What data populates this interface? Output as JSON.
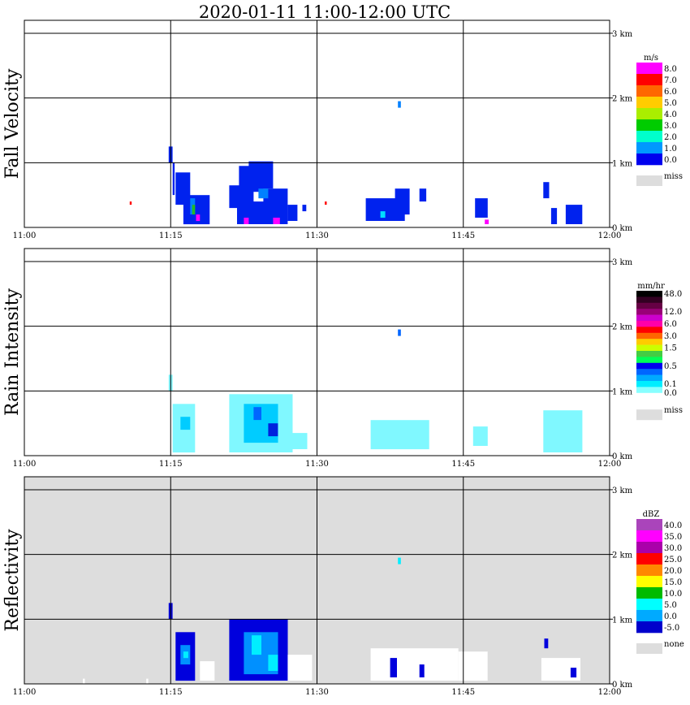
{
  "title": "2020-01-11   11:00-12:00 UTC",
  "x_ticks": [
    "11:00",
    "11:15",
    "11:30",
    "11:45",
    "12:00"
  ],
  "height_ticks": [
    "0 km",
    "1 km",
    "2 km",
    "3 km"
  ],
  "colors": {
    "grid": "#000000",
    "missing_bg": "#dddddd",
    "fv_blue": "#0022ee",
    "fv_mid": "#0080ff",
    "fv_cyan": "#00ddff",
    "fv_green": "#22bb22",
    "fv_magenta": "#ff00ff",
    "fv_red": "#ff0000",
    "ri_light": "#80f8ff",
    "ri_cyan": "#00ccff",
    "ri_blue": "#0066ff",
    "ri_dark": "#0022dd",
    "rf_blue": "#0000dd",
    "rf_mid": "#0090ff",
    "rf_cyan": "#00eeff",
    "rf_white": "#ffffff"
  },
  "chart_data": [
    {
      "type": "heatmap",
      "ylabel": "Fall Velocity",
      "x_range": [
        "11:00",
        "12:00"
      ],
      "y_range_km": [
        0,
        3.2
      ],
      "legend": {
        "unit": "m/s",
        "placement": "right",
        "labels": [
          "8.0",
          "7.0",
          "6.0",
          "5.0",
          "4.0",
          "3.0",
          "2.0",
          "1.0",
          "0.0"
        ],
        "colors": [
          "#ff00ff",
          "#ff0000",
          "#ff6600",
          "#ffcc00",
          "#aaee00",
          "#00cc00",
          "#00ffcc",
          "#0099ff",
          "#0000ee"
        ],
        "missing_label": "miss",
        "missing_color": "#dddddd"
      },
      "echoes": [
        {
          "t0": 14.8,
          "t1": 15.2,
          "h0": 1.0,
          "h1": 1.25,
          "color": "fv_blue"
        },
        {
          "t0": 15.2,
          "t1": 15.4,
          "h0": 0.5,
          "h1": 1.0,
          "color": "fv_blue"
        },
        {
          "t0": 15.5,
          "t1": 17.0,
          "h0": 0.35,
          "h1": 0.85,
          "color": "fv_blue"
        },
        {
          "t0": 16.3,
          "t1": 19.0,
          "h0": 0.05,
          "h1": 0.5,
          "color": "fv_blue"
        },
        {
          "t0": 17.0,
          "t1": 17.5,
          "h0": 0.2,
          "h1": 0.45,
          "color": "fv_mid"
        },
        {
          "t0": 17.2,
          "t1": 17.5,
          "h0": 0.2,
          "h1": 0.35,
          "color": "fv_green"
        },
        {
          "t0": 17.6,
          "t1": 18.0,
          "h0": 0.1,
          "h1": 0.2,
          "color": "fv_magenta"
        },
        {
          "t0": 21.0,
          "t1": 23.5,
          "h0": 0.3,
          "h1": 0.65,
          "color": "fv_blue"
        },
        {
          "t0": 22.0,
          "t1": 24.5,
          "h0": 0.55,
          "h1": 0.95,
          "color": "fv_blue"
        },
        {
          "t0": 23.0,
          "t1": 25.5,
          "h0": 0.6,
          "h1": 1.02,
          "color": "fv_blue"
        },
        {
          "t0": 21.8,
          "t1": 25.0,
          "h0": 0.05,
          "h1": 0.4,
          "color": "fv_blue"
        },
        {
          "t0": 24.5,
          "t1": 27.0,
          "h0": 0.05,
          "h1": 0.6,
          "color": "fv_blue"
        },
        {
          "t0": 24.0,
          "t1": 25.0,
          "h0": 0.45,
          "h1": 0.6,
          "color": "fv_mid"
        },
        {
          "t0": 22.5,
          "t1": 23.0,
          "h0": 0.05,
          "h1": 0.15,
          "color": "fv_magenta"
        },
        {
          "t0": 25.5,
          "t1": 26.2,
          "h0": 0.05,
          "h1": 0.15,
          "color": "fv_magenta"
        },
        {
          "t0": 27.0,
          "t1": 28.0,
          "h0": 0.1,
          "h1": 0.35,
          "color": "fv_blue"
        },
        {
          "t0": 28.5,
          "t1": 28.9,
          "h0": 0.25,
          "h1": 0.35,
          "color": "fv_blue"
        },
        {
          "t0": 35.0,
          "t1": 39.0,
          "h0": 0.1,
          "h1": 0.45,
          "color": "fv_blue"
        },
        {
          "t0": 36.5,
          "t1": 37.0,
          "h0": 0.15,
          "h1": 0.25,
          "color": "fv_cyan"
        },
        {
          "t0": 38.0,
          "t1": 39.5,
          "h0": 0.2,
          "h1": 0.6,
          "color": "fv_blue"
        },
        {
          "t0": 40.5,
          "t1": 41.2,
          "h0": 0.4,
          "h1": 0.6,
          "color": "fv_blue"
        },
        {
          "t0": 38.3,
          "t1": 38.6,
          "h0": 1.85,
          "h1": 1.95,
          "color": "fv_mid"
        },
        {
          "t0": 46.2,
          "t1": 47.5,
          "h0": 0.15,
          "h1": 0.45,
          "color": "fv_blue"
        },
        {
          "t0": 47.2,
          "t1": 47.6,
          "h0": 0.05,
          "h1": 0.12,
          "color": "fv_magenta"
        },
        {
          "t0": 53.2,
          "t1": 53.8,
          "h0": 0.45,
          "h1": 0.7,
          "color": "fv_blue"
        },
        {
          "t0": 54.0,
          "t1": 54.6,
          "h0": 0.05,
          "h1": 0.3,
          "color": "fv_blue"
        },
        {
          "t0": 55.5,
          "t1": 57.2,
          "h0": 0.05,
          "h1": 0.35,
          "color": "fv_blue"
        },
        {
          "t0": 10.8,
          "t1": 11.0,
          "h0": 0.35,
          "h1": 0.4,
          "color": "fv_red"
        },
        {
          "t0": 30.8,
          "t1": 31.0,
          "h0": 0.35,
          "h1": 0.4,
          "color": "fv_red"
        }
      ]
    },
    {
      "type": "heatmap",
      "ylabel": "Rain Intensity",
      "x_range": [
        "11:00",
        "12:00"
      ],
      "y_range_km": [
        0,
        3.2
      ],
      "legend": {
        "unit": "mm/hr",
        "placement": "right",
        "labels": [
          "48.0",
          "12.0",
          "6.0",
          "3.0",
          "1.5",
          "0.5",
          "0.1",
          "0.0"
        ],
        "colors": [
          "#000000",
          "#330022",
          "#660044",
          "#990077",
          "#cc00cc",
          "#ff00aa",
          "#ff0000",
          "#ff6600",
          "#ffcc00",
          "#ccff00",
          "#44cc44",
          "#00ff55",
          "#0000ee",
          "#0066ff",
          "#00aaff",
          "#00eeff",
          "#88ffff",
          "#ffffff"
        ],
        "missing_label": "miss",
        "missing_color": "#dddddd"
      },
      "echoes": [
        {
          "t0": 14.8,
          "t1": 15.2,
          "h0": 1.0,
          "h1": 1.25,
          "color": "ri_light"
        },
        {
          "t0": 15.2,
          "t1": 17.5,
          "h0": 0.05,
          "h1": 0.8,
          "color": "ri_light"
        },
        {
          "t0": 16.0,
          "t1": 17.0,
          "h0": 0.4,
          "h1": 0.6,
          "color": "ri_cyan"
        },
        {
          "t0": 21.0,
          "t1": 27.5,
          "h0": 0.05,
          "h1": 0.95,
          "color": "ri_light"
        },
        {
          "t0": 22.5,
          "t1": 26.0,
          "h0": 0.2,
          "h1": 0.8,
          "color": "ri_cyan"
        },
        {
          "t0": 23.5,
          "t1": 24.3,
          "h0": 0.55,
          "h1": 0.75,
          "color": "ri_blue"
        },
        {
          "t0": 25.0,
          "t1": 26.0,
          "h0": 0.3,
          "h1": 0.5,
          "color": "ri_dark"
        },
        {
          "t0": 27.5,
          "t1": 29.0,
          "h0": 0.1,
          "h1": 0.35,
          "color": "ri_light"
        },
        {
          "t0": 35.5,
          "t1": 41.5,
          "h0": 0.1,
          "h1": 0.55,
          "color": "ri_light"
        },
        {
          "t0": 38.3,
          "t1": 38.6,
          "h0": 1.85,
          "h1": 1.95,
          "color": "ri_blue"
        },
        {
          "t0": 46.0,
          "t1": 47.5,
          "h0": 0.15,
          "h1": 0.45,
          "color": "ri_light"
        },
        {
          "t0": 53.2,
          "t1": 57.2,
          "h0": 0.05,
          "h1": 0.7,
          "color": "ri_light"
        }
      ]
    },
    {
      "type": "heatmap",
      "ylabel": "Reflectivity",
      "x_range": [
        "11:00",
        "12:00"
      ],
      "y_range_km": [
        0,
        3.2
      ],
      "legend": {
        "unit": "dBZ",
        "placement": "right",
        "labels": [
          "40.0",
          "35.0",
          "30.0",
          "25.0",
          "20.0",
          "15.0",
          "10.0",
          "5.0",
          "0.0",
          "-5.0"
        ],
        "colors": [
          "#aa44bb",
          "#ff00ff",
          "#aa00aa",
          "#ff0000",
          "#ff8800",
          "#ffff00",
          "#00bb00",
          "#00ffff",
          "#00aaff",
          "#0000cc"
        ],
        "missing_label": "none",
        "missing_color": "#dddddd"
      },
      "echoes": [
        {
          "t0": 14.8,
          "t1": 15.2,
          "h0": 1.0,
          "h1": 1.25,
          "color": "rf_blue"
        },
        {
          "t0": 15.5,
          "t1": 17.5,
          "h0": 0.05,
          "h1": 0.8,
          "color": "rf_blue"
        },
        {
          "t0": 16.0,
          "t1": 17.0,
          "h0": 0.3,
          "h1": 0.6,
          "color": "rf_mid"
        },
        {
          "t0": 16.3,
          "t1": 16.8,
          "h0": 0.4,
          "h1": 0.5,
          "color": "rf_cyan"
        },
        {
          "t0": 18.0,
          "t1": 19.5,
          "h0": 0.05,
          "h1": 0.35,
          "color": "rf_white"
        },
        {
          "t0": 21.0,
          "t1": 27.0,
          "h0": 0.05,
          "h1": 1.0,
          "color": "rf_blue"
        },
        {
          "t0": 22.5,
          "t1": 26.0,
          "h0": 0.15,
          "h1": 0.8,
          "color": "rf_mid"
        },
        {
          "t0": 23.3,
          "t1": 24.3,
          "h0": 0.45,
          "h1": 0.75,
          "color": "rf_cyan"
        },
        {
          "t0": 25.0,
          "t1": 26.0,
          "h0": 0.2,
          "h1": 0.45,
          "color": "rf_cyan"
        },
        {
          "t0": 27.0,
          "t1": 29.5,
          "h0": 0.05,
          "h1": 0.45,
          "color": "rf_white"
        },
        {
          "t0": 35.5,
          "t1": 44.5,
          "h0": 0.05,
          "h1": 0.55,
          "color": "rf_white"
        },
        {
          "t0": 37.5,
          "t1": 38.2,
          "h0": 0.1,
          "h1": 0.4,
          "color": "rf_blue"
        },
        {
          "t0": 40.5,
          "t1": 41.0,
          "h0": 0.1,
          "h1": 0.3,
          "color": "rf_blue"
        },
        {
          "t0": 38.3,
          "t1": 38.6,
          "h0": 1.85,
          "h1": 1.95,
          "color": "rf_cyan"
        },
        {
          "t0": 44.5,
          "t1": 47.5,
          "h0": 0.05,
          "h1": 0.5,
          "color": "rf_white"
        },
        {
          "t0": 53.0,
          "t1": 57.0,
          "h0": 0.05,
          "h1": 0.4,
          "color": "rf_white"
        },
        {
          "t0": 53.3,
          "t1": 53.7,
          "h0": 0.55,
          "h1": 0.7,
          "color": "rf_blue"
        },
        {
          "t0": 56.0,
          "t1": 56.6,
          "h0": 0.1,
          "h1": 0.25,
          "color": "rf_blue"
        },
        {
          "t0": 6.0,
          "t1": 6.2,
          "h0": 0.0,
          "h1": 0.08,
          "color": "rf_white"
        },
        {
          "t0": 12.5,
          "t1": 12.7,
          "h0": 0.0,
          "h1": 0.08,
          "color": "rf_white"
        }
      ]
    }
  ]
}
